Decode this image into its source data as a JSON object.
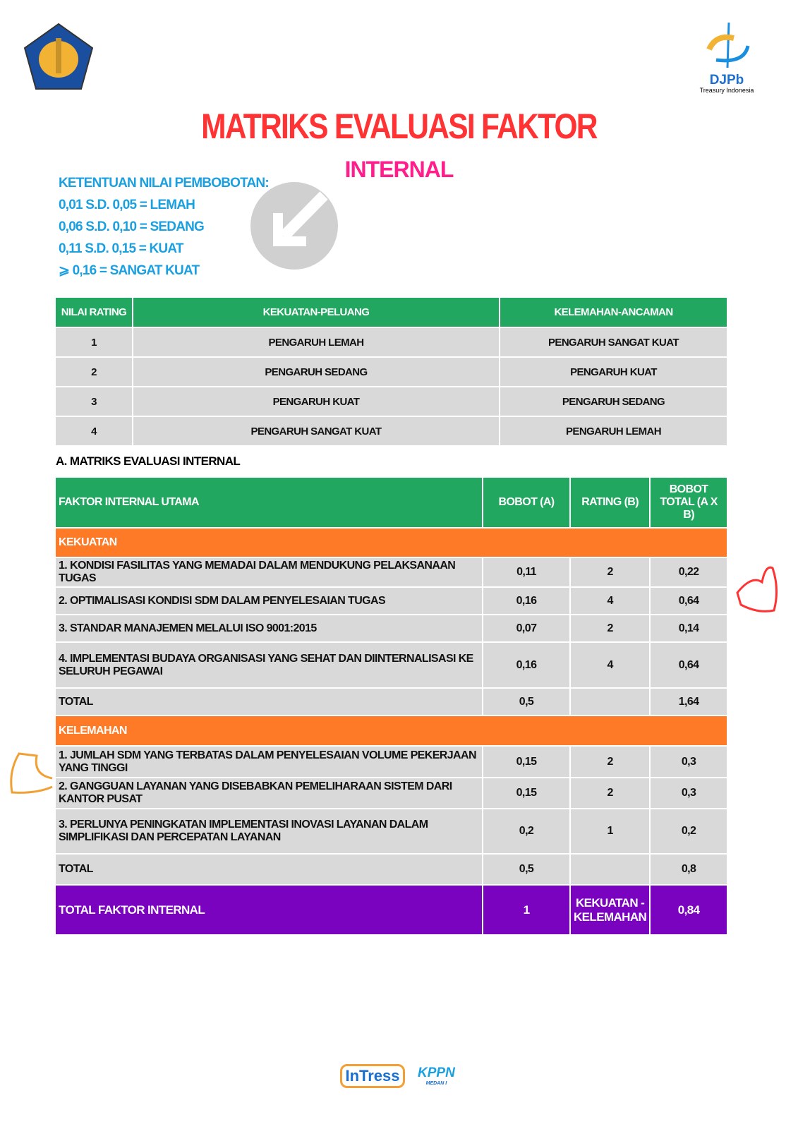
{
  "header": {
    "title": "MATRIKS EVALUASI FAKTOR",
    "subtitle": "INTERNAL",
    "djpb_logo": "DJPb",
    "djpb_tagline": "Treasury Indonesia"
  },
  "legend": {
    "heading": "KETENTUAN NILAI PEMBOBOTAN:",
    "items": [
      "0,01 S.D. 0,05 = LEMAH",
      "0,06 S.D. 0,10 = SEDANG",
      "0,11 S.D. 0,15 = KUAT",
      "⩾ 0,16 = SANGAT KUAT"
    ]
  },
  "rating_table": {
    "headers": [
      "NILAI RATING",
      "KEKUATAN-PELUANG",
      "KELEMAHAN-ANCAMAN"
    ],
    "rows": [
      [
        "1",
        "PENGARUH LEMAH",
        "PENGARUH SANGAT KUAT"
      ],
      [
        "2",
        "PENGARUH SEDANG",
        "PENGARUH KUAT"
      ],
      [
        "3",
        "PENGARUH KUAT",
        "PENGARUH SEDANG"
      ],
      [
        "4",
        "PENGARUH SANGAT KUAT",
        "PENGARUH LEMAH"
      ]
    ]
  },
  "section_title": "A. MATRIKS EVALUASI INTERNAL",
  "ife": {
    "headers": [
      "FAKTOR INTERNAL UTAMA",
      "BOBOT (A)",
      "RATING (B)",
      "BOBOT TOTAL (A X B)"
    ],
    "kekuatan": {
      "label": "KEKUATAN",
      "rows": [
        [
          "1. KONDISI FASILITAS YANG MEMADAI DALAM MENDUKUNG PELAKSANAAN TUGAS",
          "0,11",
          "2",
          "0,22"
        ],
        [
          "2. OPTIMALISASI KONDISI SDM DALAM PENYELESAIAN TUGAS",
          "0,16",
          "4",
          "0,64"
        ],
        [
          "3. STANDAR MANAJEMEN MELALUI ISO 9001:2015",
          "0,07",
          "2",
          "0,14"
        ],
        [
          "4. IMPLEMENTASI BUDAYA ORGANISASI YANG SEHAT DAN DIINTERNALISASI KE SELURUH PEGAWAI",
          "0,16",
          "4",
          "0,64"
        ]
      ],
      "total": [
        "TOTAL",
        "0,5",
        "",
        "1,64"
      ]
    },
    "kelemahan": {
      "label": "KELEMAHAN",
      "rows": [
        [
          "1. JUMLAH SDM YANG TERBATAS DALAM PENYELESAIAN VOLUME PEKERJAAN YANG TINGGI",
          "0,15",
          "2",
          "0,3"
        ],
        [
          "2. GANGGUAN LAYANAN YANG DISEBABKAN PEMELIHARAAN SISTEM DARI KANTOR PUSAT",
          "0,15",
          "2",
          "0,3"
        ],
        [
          "3. PERLUNYA PENINGKATAN IMPLEMENTASI INOVASI LAYANAN DALAM SIMPLIFIKASI DAN PERCEPATAN LAYANAN",
          "0,2",
          "1",
          "0,2"
        ]
      ],
      "total": [
        "TOTAL",
        "0,5",
        "",
        "0,8"
      ]
    },
    "grand_total": [
      "TOTAL FAKTOR INTERNAL",
      "1",
      "KEKUATAN - KELEMAHAN",
      "0,84"
    ]
  },
  "footer": {
    "logo1": "InTress",
    "logo2": "KPPN",
    "logo2_sub": "MEDAN I"
  }
}
